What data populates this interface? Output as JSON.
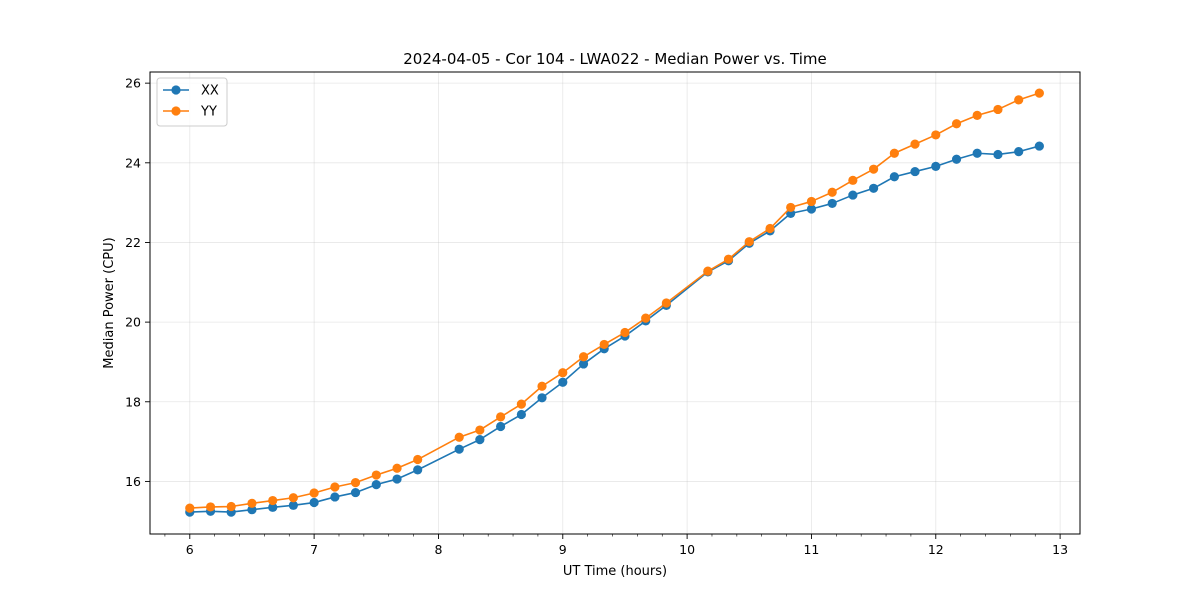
{
  "chart_data": {
    "type": "line",
    "title": "2024-04-05 - Cor 104 - LWA022 - Median Power vs. Time",
    "xlabel": "UT Time (hours)",
    "ylabel": "Median Power (CPU)",
    "xlim": [
      5.68,
      13.16
    ],
    "ylim": [
      14.68,
      26.28
    ],
    "xticks": [
      6,
      7,
      8,
      9,
      10,
      11,
      12,
      13
    ],
    "yticks": [
      16,
      18,
      20,
      22,
      24,
      26
    ],
    "grid": true,
    "legend_position": "top-left",
    "series": [
      {
        "name": "XX",
        "color": "#1f77b4",
        "x": [
          6.0,
          6.167,
          6.333,
          6.5,
          6.667,
          6.833,
          7.0,
          7.167,
          7.333,
          7.5,
          7.667,
          7.833,
          8.167,
          8.333,
          8.5,
          8.667,
          8.833,
          9.0,
          9.167,
          9.333,
          9.5,
          9.667,
          9.833,
          10.167,
          10.333,
          10.5,
          10.667,
          10.833,
          11.0,
          11.167,
          11.333,
          11.5,
          11.667,
          11.833,
          12.0,
          12.167,
          12.333,
          12.5,
          12.667,
          12.833
        ],
        "y": [
          15.23,
          15.25,
          15.23,
          15.29,
          15.35,
          15.4,
          15.47,
          15.61,
          15.72,
          15.92,
          16.06,
          16.29,
          16.81,
          17.05,
          17.38,
          17.68,
          18.1,
          18.49,
          18.95,
          19.33,
          19.65,
          20.03,
          20.42,
          21.26,
          21.54,
          21.98,
          22.29,
          22.73,
          22.84,
          22.98,
          23.19,
          23.36,
          23.65,
          23.78,
          23.91,
          24.09,
          24.24,
          24.21,
          24.28,
          24.42
        ]
      },
      {
        "name": "YY",
        "color": "#ff7f0e",
        "x": [
          6.0,
          6.167,
          6.333,
          6.5,
          6.667,
          6.833,
          7.0,
          7.167,
          7.333,
          7.5,
          7.667,
          7.833,
          8.167,
          8.333,
          8.5,
          8.667,
          8.833,
          9.0,
          9.167,
          9.333,
          9.5,
          9.667,
          9.833,
          10.167,
          10.333,
          10.5,
          10.667,
          10.833,
          11.0,
          11.167,
          11.333,
          11.5,
          11.667,
          11.833,
          12.0,
          12.167,
          12.333,
          12.5,
          12.667,
          12.833
        ],
        "y": [
          15.33,
          15.36,
          15.37,
          15.45,
          15.52,
          15.59,
          15.71,
          15.86,
          15.97,
          16.16,
          16.33,
          16.55,
          17.11,
          17.29,
          17.62,
          17.94,
          18.39,
          18.73,
          19.13,
          19.44,
          19.74,
          20.1,
          20.48,
          21.28,
          21.58,
          22.02,
          22.35,
          22.88,
          23.03,
          23.26,
          23.56,
          23.84,
          24.24,
          24.47,
          24.7,
          24.98,
          25.19,
          25.34,
          25.58,
          25.75
        ]
      }
    ]
  }
}
